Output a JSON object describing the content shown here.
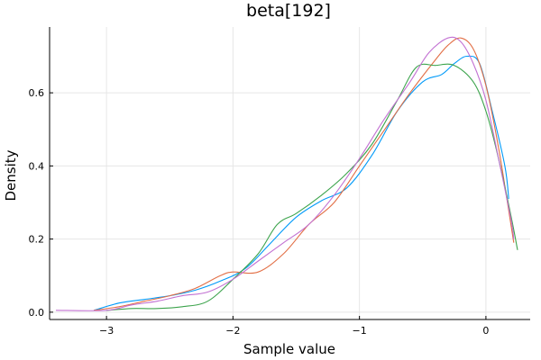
{
  "chart_data": {
    "type": "line",
    "title": "beta[192]",
    "xlabel": "Sample value",
    "ylabel": "Density",
    "xlim": [
      -3.45,
      0.35
    ],
    "ylim": [
      -0.02,
      0.78
    ],
    "xticks": [
      -3,
      -2,
      -1,
      0
    ],
    "xtick_labels": [
      "−3",
      "−2",
      "−1",
      "0"
    ],
    "yticks": [
      0.0,
      0.2,
      0.4,
      0.6
    ],
    "ytick_labels": [
      "0.0",
      "0.2",
      "0.4",
      "0.6"
    ],
    "grid": true,
    "legend": "none",
    "series": [
      {
        "color": "#009af9",
        "points": [
          [
            -3.1,
            0.005
          ],
          [
            -2.9,
            0.025
          ],
          [
            -2.7,
            0.035
          ],
          [
            -2.5,
            0.045
          ],
          [
            -2.3,
            0.06
          ],
          [
            -2.1,
            0.085
          ],
          [
            -1.9,
            0.12
          ],
          [
            -1.7,
            0.19
          ],
          [
            -1.5,
            0.26
          ],
          [
            -1.3,
            0.305
          ],
          [
            -1.1,
            0.34
          ],
          [
            -0.9,
            0.43
          ],
          [
            -0.7,
            0.55
          ],
          [
            -0.5,
            0.63
          ],
          [
            -0.35,
            0.65
          ],
          [
            -0.25,
            0.68
          ],
          [
            -0.15,
            0.7
          ],
          [
            -0.05,
            0.68
          ],
          [
            0.05,
            0.55
          ],
          [
            0.15,
            0.4
          ],
          [
            0.18,
            0.31
          ]
        ]
      },
      {
        "color": "#e26f46",
        "points": [
          [
            -3.1,
            0.005
          ],
          [
            -2.9,
            0.015
          ],
          [
            -2.7,
            0.03
          ],
          [
            -2.5,
            0.045
          ],
          [
            -2.3,
            0.065
          ],
          [
            -2.1,
            0.1
          ],
          [
            -2.0,
            0.11
          ],
          [
            -1.8,
            0.11
          ],
          [
            -1.6,
            0.16
          ],
          [
            -1.4,
            0.24
          ],
          [
            -1.2,
            0.3
          ],
          [
            -1.0,
            0.4
          ],
          [
            -0.8,
            0.5
          ],
          [
            -0.6,
            0.6
          ],
          [
            -0.4,
            0.69
          ],
          [
            -0.3,
            0.73
          ],
          [
            -0.2,
            0.75
          ],
          [
            -0.1,
            0.72
          ],
          [
            0.0,
            0.62
          ],
          [
            0.1,
            0.45
          ],
          [
            0.17,
            0.3
          ],
          [
            0.22,
            0.19
          ]
        ]
      },
      {
        "color": "#3da44d",
        "points": [
          [
            -3.0,
            0.005
          ],
          [
            -2.8,
            0.01
          ],
          [
            -2.6,
            0.01
          ],
          [
            -2.4,
            0.015
          ],
          [
            -2.2,
            0.03
          ],
          [
            -2.0,
            0.09
          ],
          [
            -1.8,
            0.16
          ],
          [
            -1.65,
            0.24
          ],
          [
            -1.5,
            0.27
          ],
          [
            -1.3,
            0.32
          ],
          [
            -1.1,
            0.38
          ],
          [
            -0.9,
            0.46
          ],
          [
            -0.7,
            0.58
          ],
          [
            -0.55,
            0.67
          ],
          [
            -0.4,
            0.675
          ],
          [
            -0.25,
            0.675
          ],
          [
            -0.1,
            0.63
          ],
          [
            0.0,
            0.55
          ],
          [
            0.1,
            0.42
          ],
          [
            0.2,
            0.26
          ],
          [
            0.25,
            0.17
          ]
        ]
      },
      {
        "color": "#c271d2",
        "points": [
          [
            -3.4,
            0.005
          ],
          [
            -3.0,
            0.005
          ],
          [
            -2.8,
            0.02
          ],
          [
            -2.6,
            0.03
          ],
          [
            -2.4,
            0.045
          ],
          [
            -2.2,
            0.055
          ],
          [
            -2.0,
            0.09
          ],
          [
            -1.8,
            0.14
          ],
          [
            -1.6,
            0.19
          ],
          [
            -1.4,
            0.24
          ],
          [
            -1.2,
            0.32
          ],
          [
            -1.0,
            0.42
          ],
          [
            -0.8,
            0.53
          ],
          [
            -0.6,
            0.63
          ],
          [
            -0.45,
            0.71
          ],
          [
            -0.3,
            0.75
          ],
          [
            -0.2,
            0.74
          ],
          [
            -0.1,
            0.68
          ],
          [
            0.0,
            0.58
          ],
          [
            0.1,
            0.42
          ],
          [
            0.2,
            0.25
          ],
          [
            0.22,
            0.2
          ]
        ]
      }
    ]
  }
}
